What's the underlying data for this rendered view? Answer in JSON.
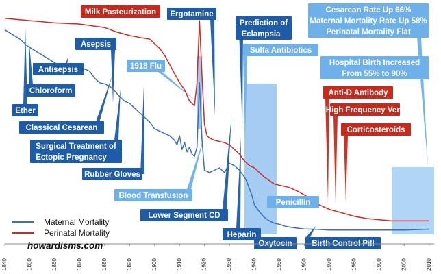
{
  "chart_data": {
    "type": "line",
    "xlim": [
      1840,
      2012
    ],
    "x_ticks": [
      1840,
      1850,
      1860,
      1870,
      1880,
      1890,
      1900,
      1910,
      1920,
      1930,
      1940,
      1950,
      1960,
      1970,
      1980,
      1990,
      2000,
      2010
    ],
    "grid": false,
    "legend_position": "bottom-left",
    "series": [
      {
        "name": "Maternal Mortality",
        "color": "#3d6fb5",
        "points": [
          [
            1840,
            0.93
          ],
          [
            1843,
            0.91
          ],
          [
            1846,
            0.89
          ],
          [
            1849,
            0.86
          ],
          [
            1852,
            0.84
          ],
          [
            1855,
            0.82
          ],
          [
            1858,
            0.8
          ],
          [
            1861,
            0.78
          ],
          [
            1864,
            0.77
          ],
          [
            1867,
            0.76
          ],
          [
            1870,
            0.755
          ],
          [
            1872,
            0.76
          ],
          [
            1874,
            0.75
          ],
          [
            1876,
            0.72
          ],
          [
            1878,
            0.7
          ],
          [
            1880,
            0.695
          ],
          [
            1882,
            0.685
          ],
          [
            1884,
            0.665
          ],
          [
            1886,
            0.64
          ],
          [
            1888,
            0.62
          ],
          [
            1890,
            0.61
          ],
          [
            1892,
            0.59
          ],
          [
            1894,
            0.57
          ],
          [
            1896,
            0.55
          ],
          [
            1898,
            0.53
          ],
          [
            1900,
            0.5
          ],
          [
            1902,
            0.49
          ],
          [
            1904,
            0.48
          ],
          [
            1906,
            0.47
          ],
          [
            1908,
            0.45
          ],
          [
            1909,
            0.43
          ],
          [
            1910,
            0.47
          ],
          [
            1911,
            0.41
          ],
          [
            1912,
            0.44
          ],
          [
            1913,
            0.4
          ],
          [
            1914,
            0.42
          ],
          [
            1915,
            0.39
          ],
          [
            1916,
            0.38
          ],
          [
            1917,
            0.42
          ],
          [
            1918,
            0.7
          ],
          [
            1919,
            0.45
          ],
          [
            1920,
            0.32
          ],
          [
            1922,
            0.31
          ],
          [
            1924,
            0.32
          ],
          [
            1926,
            0.33
          ],
          [
            1928,
            0.31
          ],
          [
            1930,
            0.35
          ],
          [
            1932,
            0.34
          ],
          [
            1934,
            0.32
          ],
          [
            1936,
            0.29
          ],
          [
            1937,
            0.27
          ],
          [
            1938,
            0.24
          ],
          [
            1939,
            0.21
          ],
          [
            1940,
            0.17
          ],
          [
            1942,
            0.14
          ],
          [
            1944,
            0.115
          ],
          [
            1946,
            0.1
          ],
          [
            1948,
            0.09
          ],
          [
            1950,
            0.085
          ],
          [
            1953,
            0.075
          ],
          [
            1956,
            0.07
          ],
          [
            1960,
            0.065
          ],
          [
            1965,
            0.063
          ],
          [
            1970,
            0.06
          ],
          [
            1980,
            0.06
          ],
          [
            1990,
            0.06
          ],
          [
            2000,
            0.06
          ],
          [
            2010,
            0.064
          ]
        ]
      },
      {
        "name": "Perinatal Mortality",
        "color": "#d22a22",
        "points": [
          [
            1840,
            0.98
          ],
          [
            1850,
            0.97
          ],
          [
            1860,
            0.96
          ],
          [
            1870,
            0.955
          ],
          [
            1880,
            0.94
          ],
          [
            1885,
            0.92
          ],
          [
            1890,
            0.905
          ],
          [
            1895,
            0.895
          ],
          [
            1898,
            0.89
          ],
          [
            1900,
            0.87
          ],
          [
            1902,
            0.85
          ],
          [
            1904,
            0.82
          ],
          [
            1906,
            0.78
          ],
          [
            1908,
            0.74
          ],
          [
            1910,
            0.7
          ],
          [
            1912,
            0.67
          ],
          [
            1914,
            0.62
          ],
          [
            1916,
            0.6
          ],
          [
            1917,
            0.7
          ],
          [
            1918,
            0.97
          ],
          [
            1919,
            0.73
          ],
          [
            1920,
            0.52
          ],
          [
            1921,
            0.47
          ],
          [
            1922,
            0.46
          ],
          [
            1924,
            0.45
          ],
          [
            1926,
            0.445
          ],
          [
            1928,
            0.44
          ],
          [
            1930,
            0.43
          ],
          [
            1932,
            0.41
          ],
          [
            1934,
            0.39
          ],
          [
            1936,
            0.36
          ],
          [
            1938,
            0.34
          ],
          [
            1940,
            0.33
          ],
          [
            1944,
            0.29
          ],
          [
            1948,
            0.26
          ],
          [
            1950,
            0.255
          ],
          [
            1954,
            0.245
          ],
          [
            1958,
            0.225
          ],
          [
            1962,
            0.2
          ],
          [
            1966,
            0.17
          ],
          [
            1970,
            0.15
          ],
          [
            1975,
            0.135
          ],
          [
            1980,
            0.12
          ],
          [
            1985,
            0.11
          ],
          [
            1990,
            0.105
          ],
          [
            1995,
            0.1
          ],
          [
            2000,
            0.1
          ],
          [
            2005,
            0.1
          ],
          [
            2010,
            0.1
          ]
        ]
      }
    ],
    "shaded_periods": [
      {
        "start": 1917,
        "end": 1919,
        "color": "#8fbfef",
        "opacity": 0.85
      },
      {
        "start": 1936,
        "end": 1949,
        "color": "#8fbfef",
        "opacity": 0.8
      },
      {
        "start": 1995,
        "end": 2012,
        "color": "#9ccaf2",
        "opacity": 0.8
      }
    ],
    "annotations": [
      {
        "text": "Ether",
        "color": "#1e5ba8"
      },
      {
        "text": "Chloroform",
        "color": "#1e5ba8"
      },
      {
        "text": "Antisepsis",
        "color": "#1e5ba8"
      },
      {
        "text": "Asepsis",
        "color": "#1e5ba8"
      },
      {
        "text": "Classical Cesarean",
        "color": "#1e5ba8"
      },
      {
        "text": "Surgical Treatment of",
        "color": "#1e5ba8"
      },
      {
        "text": "Ectopic Pregnancy",
        "color": "#1e5ba8"
      },
      {
        "text": "Rubber Gloves",
        "color": "#1e5ba8"
      },
      {
        "text": "Milk Pasteurization",
        "color": "#c62a1c"
      },
      {
        "text": "1918 Flu",
        "color": "#6eb0ea"
      },
      {
        "text": "Ergotamine",
        "color": "#1e5ba8"
      },
      {
        "text": "Blood Transfusion",
        "color": "#6eb0ea"
      },
      {
        "text": "Lower Segment CD",
        "color": "#1e5ba8"
      },
      {
        "text": "Prediction of",
        "color": "#1e5ba8"
      },
      {
        "text": "Eclampsia",
        "color": "#1e5ba8"
      },
      {
        "text": "Heparin",
        "color": "#1e5ba8"
      },
      {
        "text": "Sulfa Antibiotics",
        "color": "#6eb0ea"
      },
      {
        "text": "Penicillin",
        "color": "#6eb0ea"
      },
      {
        "text": "Oxytocin",
        "color": "#1e5ba8"
      },
      {
        "text": "Birth Control Pill",
        "color": "#1e5ba8"
      },
      {
        "text": "Hospital Birth Increased",
        "color": "#6eb0ea"
      },
      {
        "text": "From 55% to 90%",
        "color": "#6eb0ea"
      },
      {
        "text": "Anti-D Antibody",
        "color": "#c62a1c"
      },
      {
        "text": "High Frequency Vent",
        "color": "#c62a1c"
      },
      {
        "text": "Corticosteroids",
        "color": "#c62a1c"
      },
      {
        "text": "Cesarean Rate Up 66%",
        "color": "#6eb0ea"
      },
      {
        "text": "Maternal Mortality Rate Up 58%",
        "color": "#6eb0ea"
      },
      {
        "text": "Perinatal Mortality Flat",
        "color": "#6eb0ea"
      }
    ],
    "watermark": "howardisms.com"
  }
}
